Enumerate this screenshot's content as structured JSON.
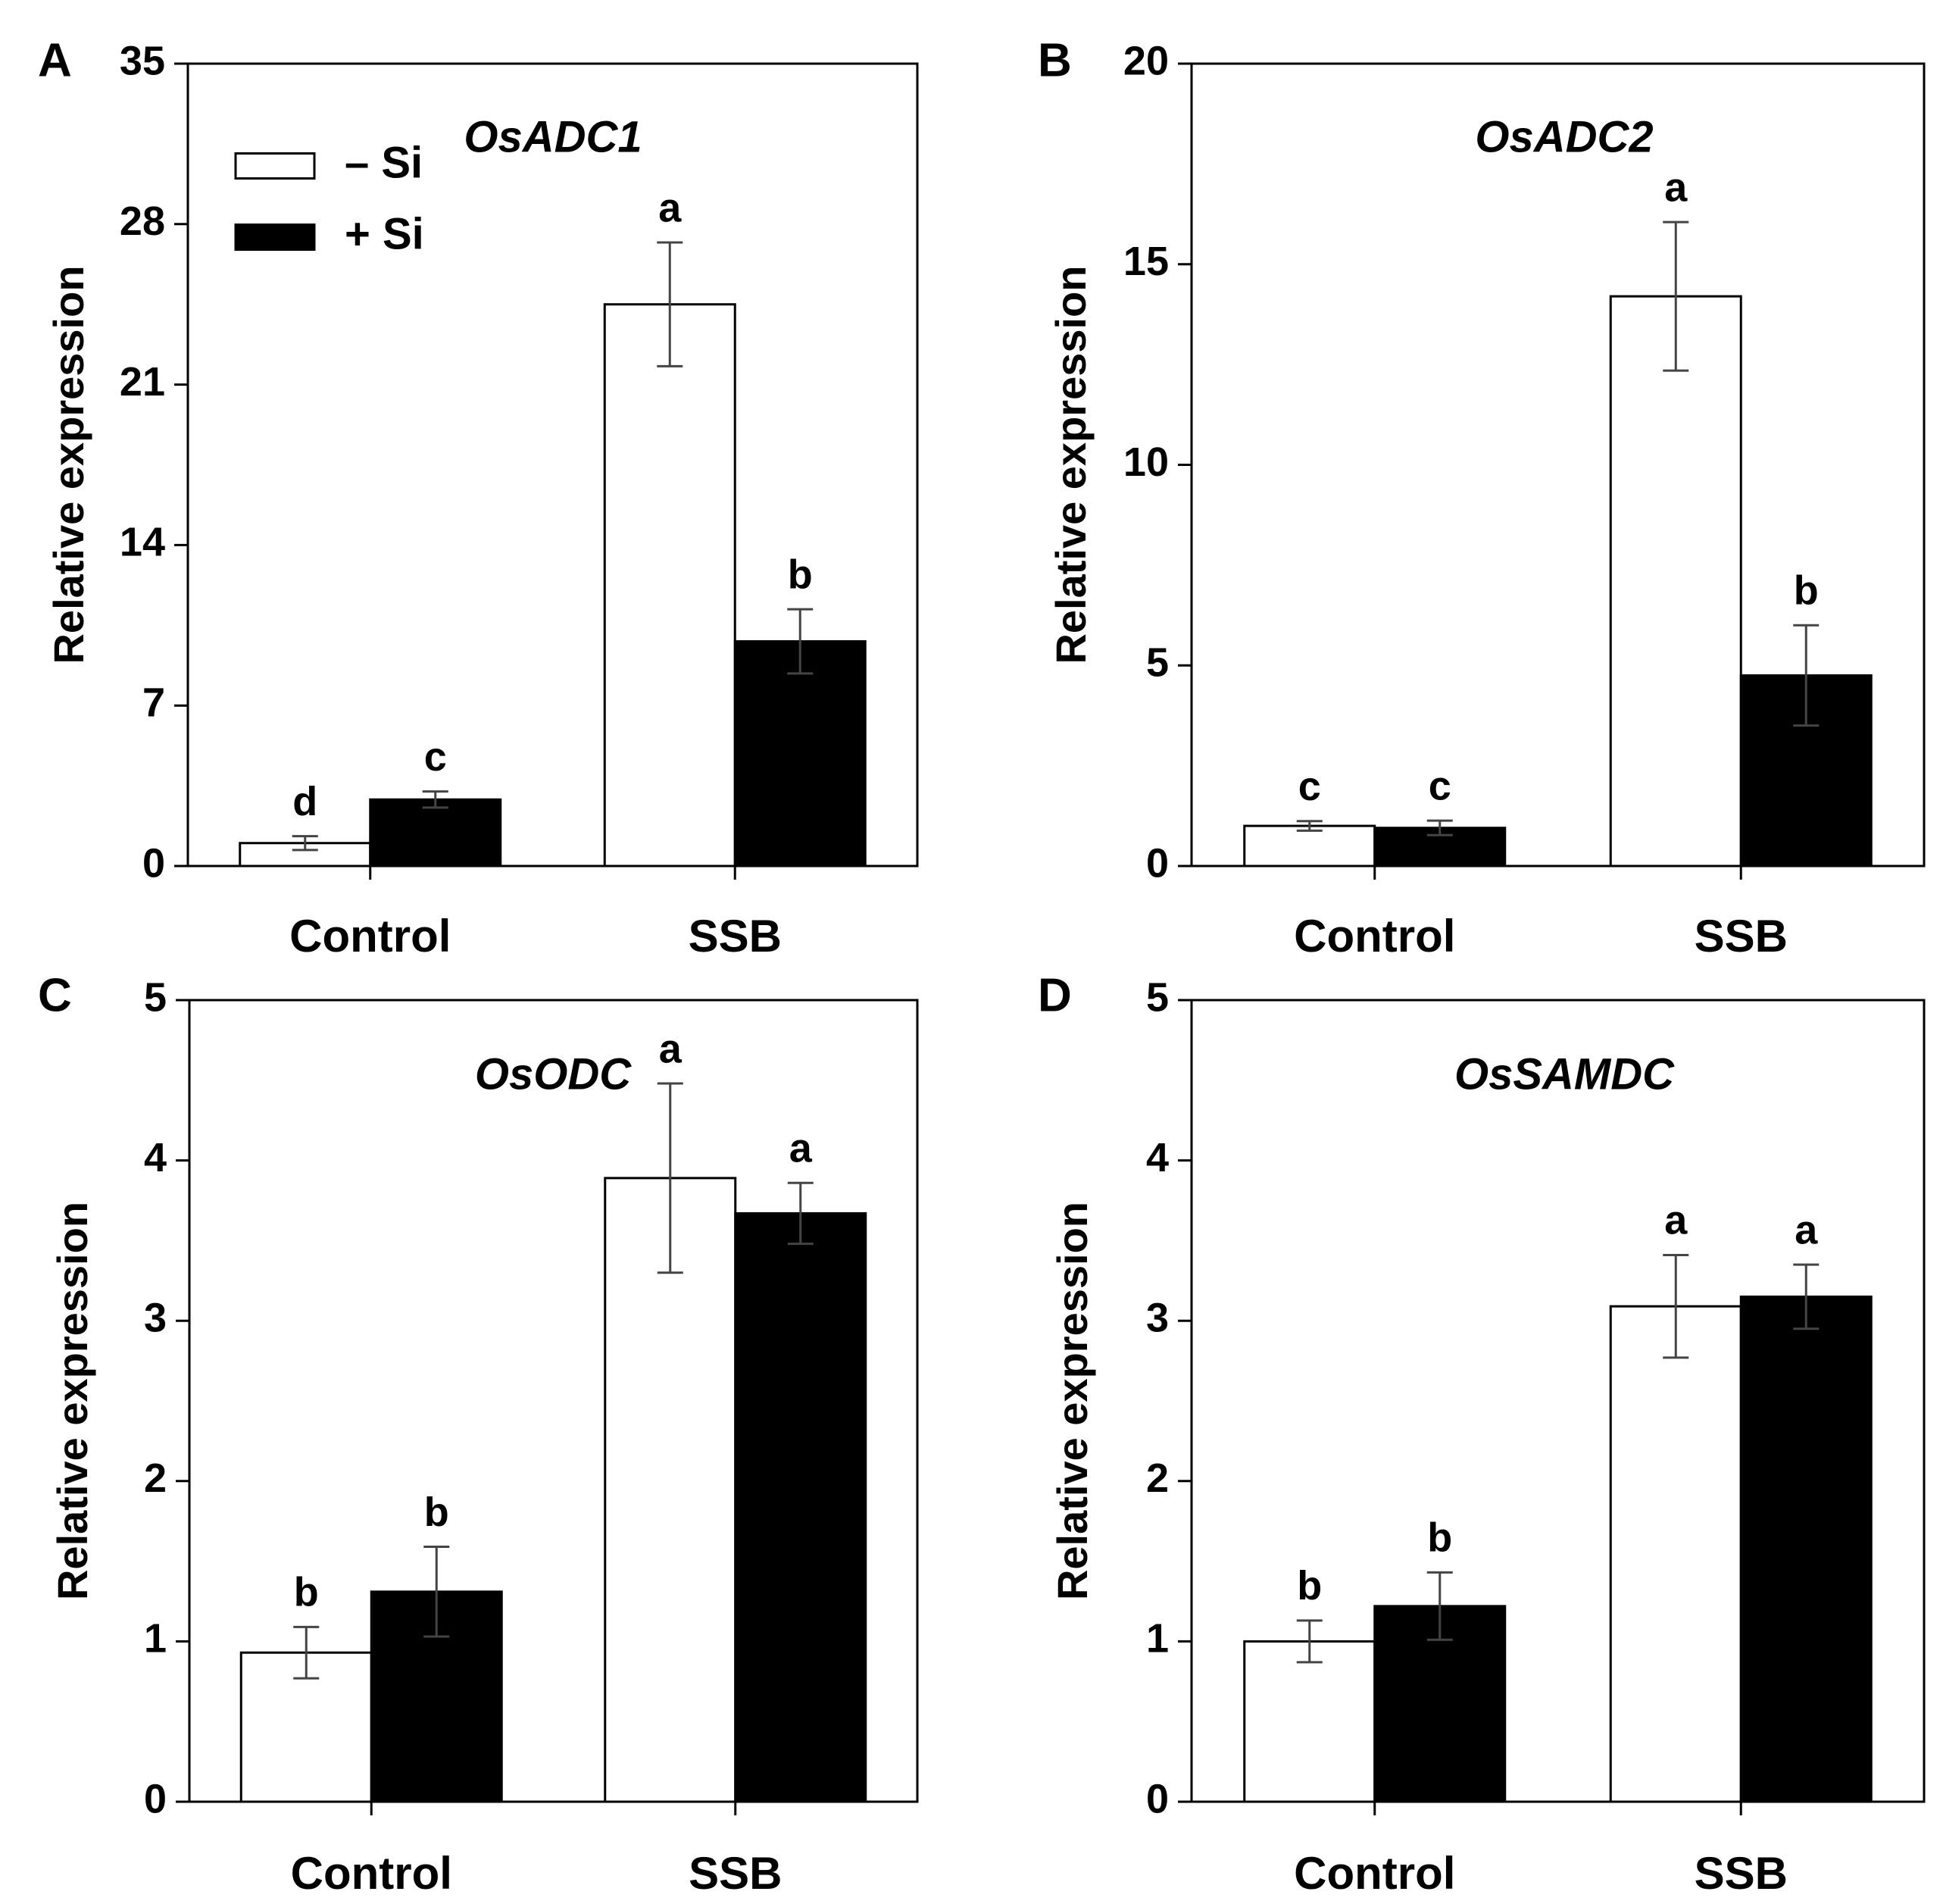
{
  "chart_data": [
    {
      "type": "bar",
      "panel": "A",
      "title": "OsADC1",
      "xlabel": "",
      "ylabel": "Relative expression",
      "ylim": [
        0,
        35
      ],
      "yticks": [
        0,
        7,
        14,
        21,
        28,
        35
      ],
      "categories": [
        "Control",
        "SSB"
      ],
      "series": [
        {
          "name": "– Si",
          "values": [
            1.0,
            24.5
          ],
          "errors": [
            0.3,
            2.7
          ],
          "letters": [
            "d",
            "a"
          ]
        },
        {
          "name": "+ Si",
          "values": [
            2.9,
            9.8
          ],
          "errors": [
            0.35,
            1.4
          ],
          "letters": [
            "c",
            "b"
          ]
        }
      ],
      "legend": "top-left"
    },
    {
      "type": "bar",
      "panel": "B",
      "title": "OsADC2",
      "xlabel": "",
      "ylabel": "Relative expression",
      "ylim": [
        0,
        20
      ],
      "yticks": [
        0,
        5,
        10,
        15,
        20
      ],
      "categories": [
        "Control",
        "SSB"
      ],
      "series": [
        {
          "name": "– Si",
          "values": [
            1.0,
            14.2
          ],
          "errors": [
            0.12,
            1.85
          ],
          "letters": [
            "c",
            "a"
          ]
        },
        {
          "name": "+ Si",
          "values": [
            0.95,
            4.75
          ],
          "errors": [
            0.18,
            1.25
          ],
          "letters": [
            "c",
            "b"
          ]
        }
      ]
    },
    {
      "type": "bar",
      "panel": "C",
      "title": "OsODC",
      "xlabel": "",
      "ylabel": "Relative expression",
      "ylim": [
        0,
        5
      ],
      "yticks": [
        0,
        1,
        2,
        3,
        4,
        5
      ],
      "categories": [
        "Control",
        "SSB"
      ],
      "series": [
        {
          "name": "– Si",
          "values": [
            0.93,
            3.89
          ],
          "errors": [
            0.16,
            0.59
          ],
          "letters": [
            "b",
            "a"
          ]
        },
        {
          "name": "+ Si",
          "values": [
            1.31,
            3.67
          ],
          "errors": [
            0.28,
            0.19
          ],
          "letters": [
            "b",
            "a"
          ]
        }
      ]
    },
    {
      "type": "bar",
      "panel": "D",
      "title": "OsSAMDC",
      "xlabel": "",
      "ylabel": "Relative expression",
      "ylim": [
        0,
        5
      ],
      "yticks": [
        0,
        1,
        2,
        3,
        4,
        5
      ],
      "categories": [
        "Control",
        "SSB"
      ],
      "series": [
        {
          "name": "– Si",
          "values": [
            1.0,
            3.09
          ],
          "errors": [
            0.13,
            0.32
          ],
          "letters": [
            "b",
            "a"
          ]
        },
        {
          "name": "+ Si",
          "values": [
            1.22,
            3.15
          ],
          "errors": [
            0.21,
            0.2
          ],
          "letters": [
            "b",
            "a"
          ]
        }
      ]
    }
  ],
  "colors": {
    "minus_si": "#ffffff",
    "plus_si": "#000000",
    "stroke": "#000000"
  }
}
